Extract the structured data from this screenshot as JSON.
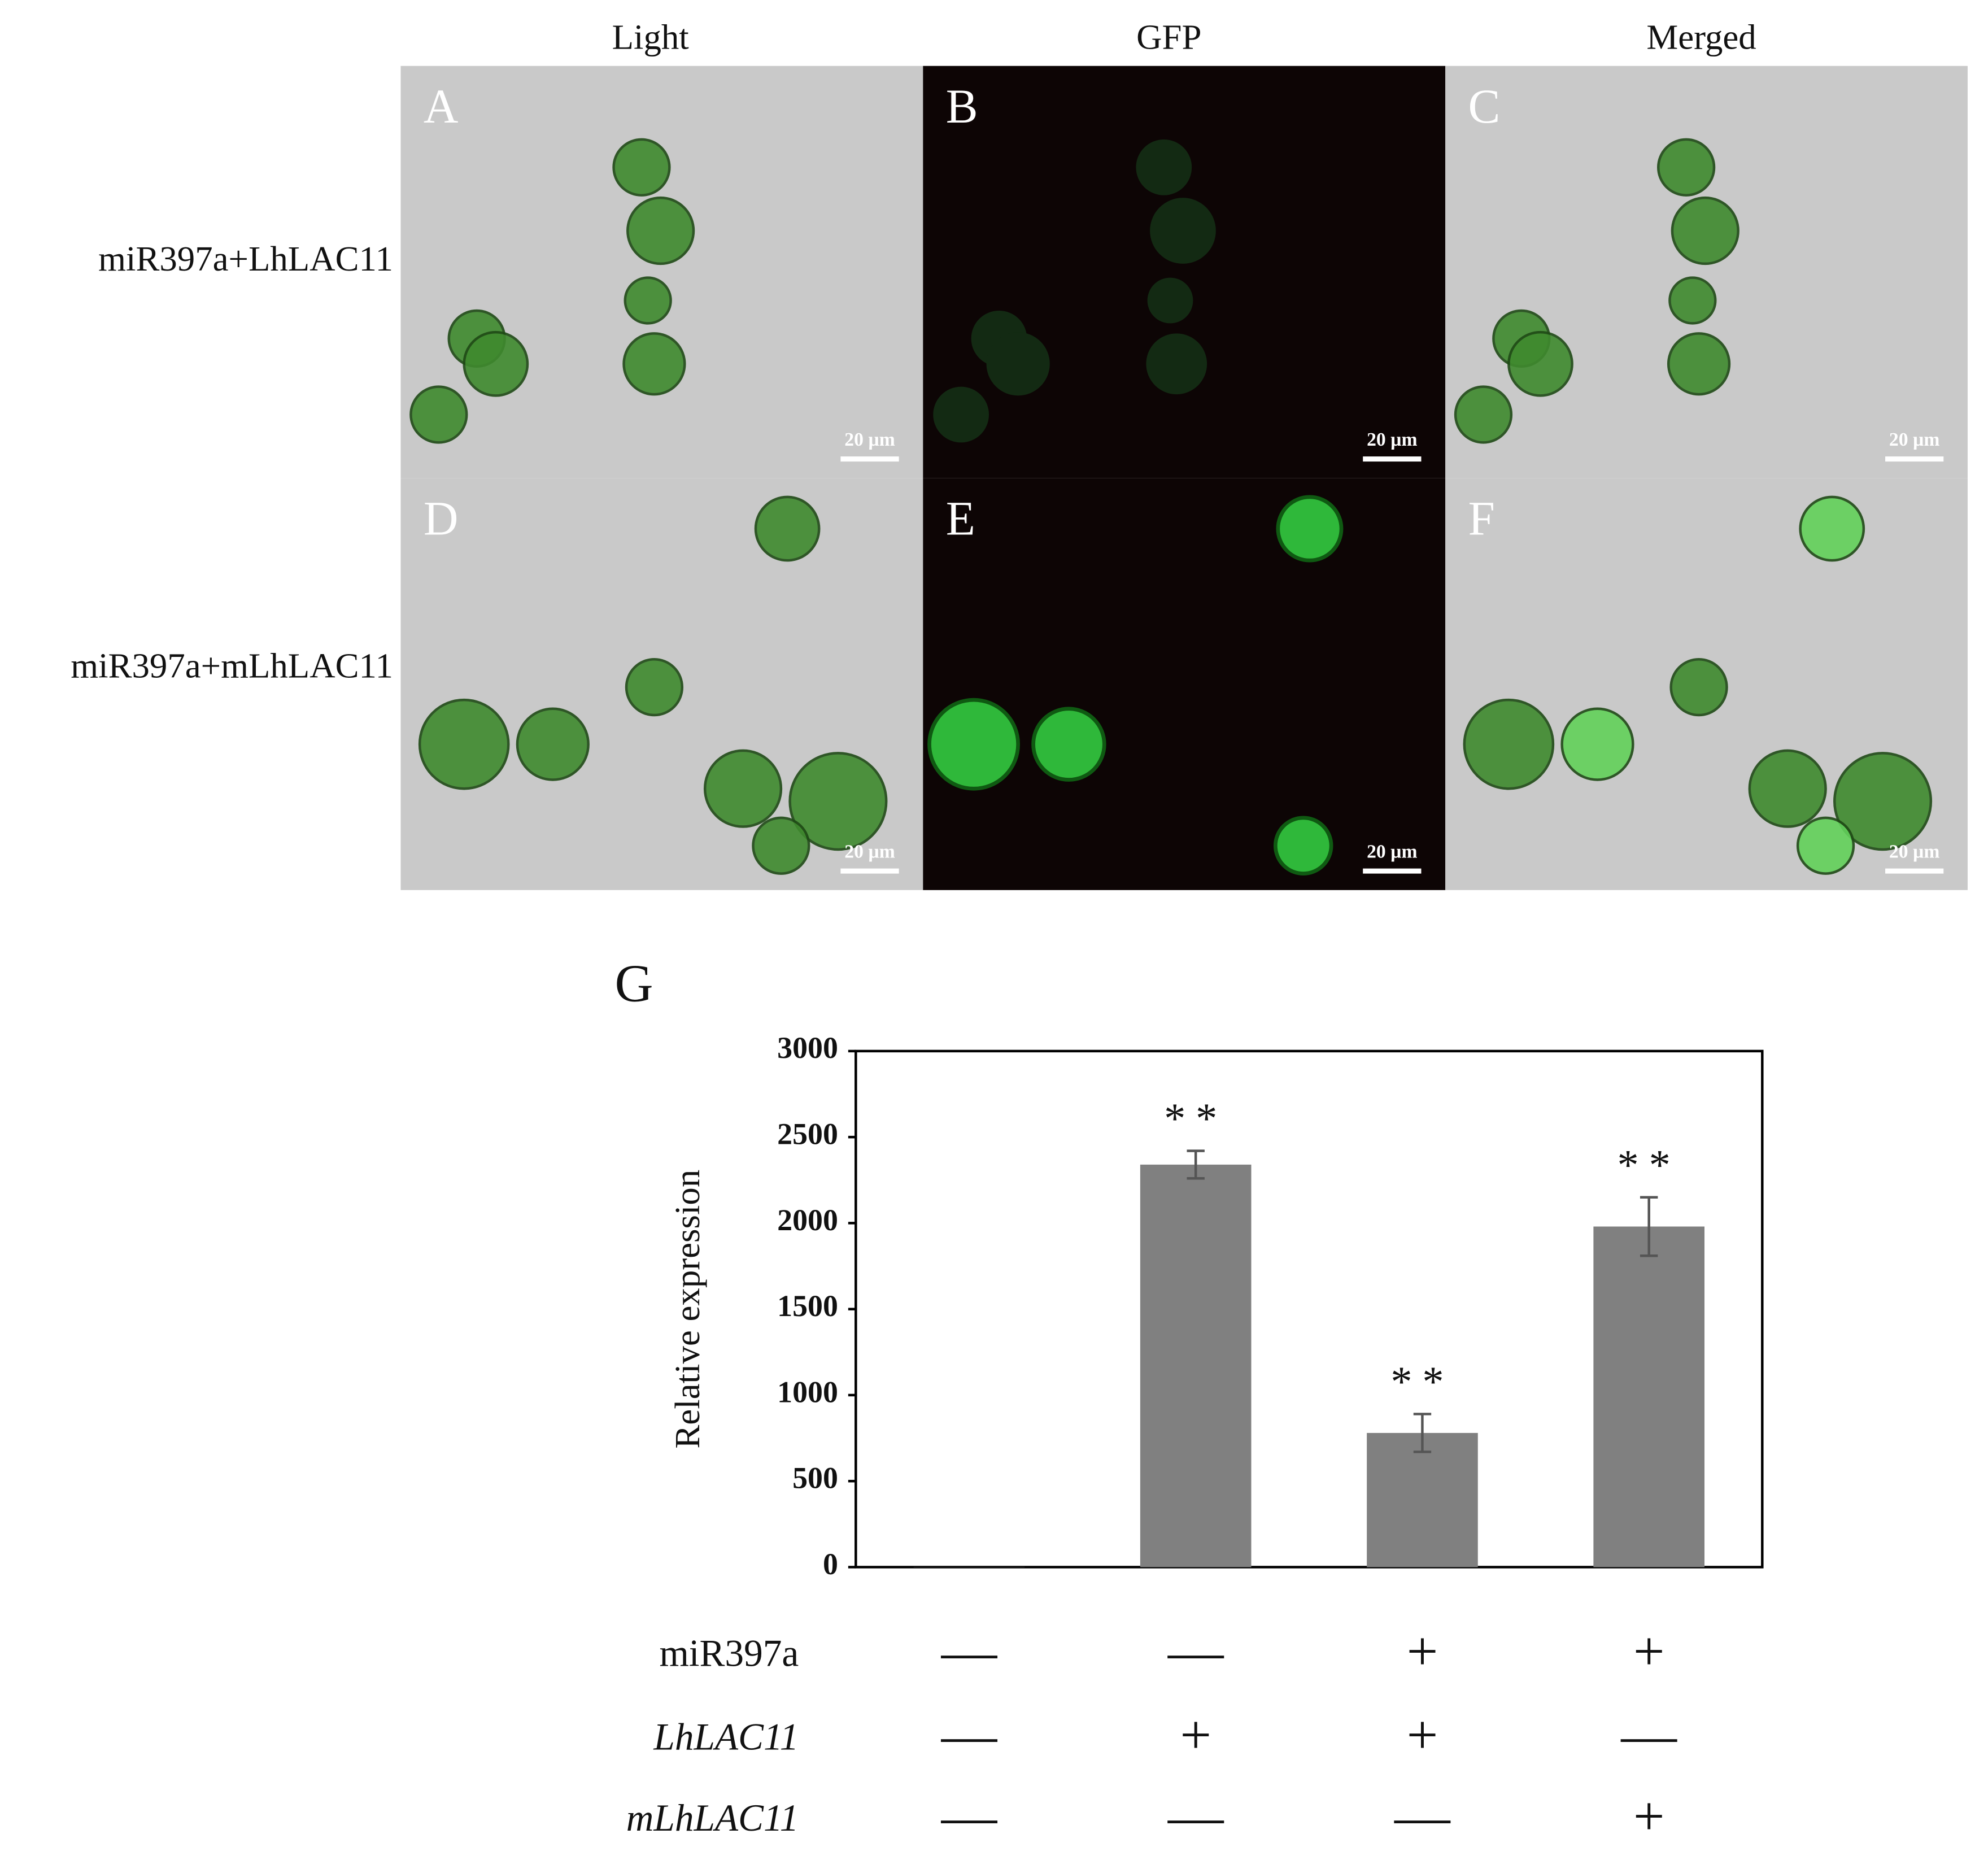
{
  "figure": {
    "column_labels": [
      "Light",
      "GFP",
      "Merged"
    ],
    "row_labels": [
      "miR397a+LhLAC11",
      "miR397a+mLhLAC11"
    ],
    "panel_letters": [
      "A",
      "B",
      "C",
      "D",
      "E",
      "F"
    ],
    "scale_bar": "20 µm",
    "chart_letter": "G"
  },
  "chart_data": {
    "type": "bar",
    "y_label": "Relative expression",
    "categories": [
      null,
      null,
      null,
      null
    ],
    "values": [
      1,
      2340,
      780,
      1980
    ],
    "errors": [
      0,
      80,
      110,
      170
    ],
    "significance": [
      null,
      "**",
      "**",
      "**"
    ],
    "color": "#808080",
    "ylim": [
      0,
      3000
    ],
    "yticks": [
      0,
      500,
      1000,
      1500,
      2000,
      2500,
      3000
    ],
    "conditions": [
      {
        "label": "miR397a",
        "italic": false,
        "signs": [
          "—",
          "—",
          "+",
          "+"
        ]
      },
      {
        "label": "LhLAC11",
        "italic": true,
        "signs": [
          "—",
          "+",
          "+",
          "—"
        ]
      },
      {
        "label": "mLhLAC11",
        "italic": true,
        "signs": [
          "—",
          "—",
          "—",
          "+"
        ]
      }
    ]
  }
}
